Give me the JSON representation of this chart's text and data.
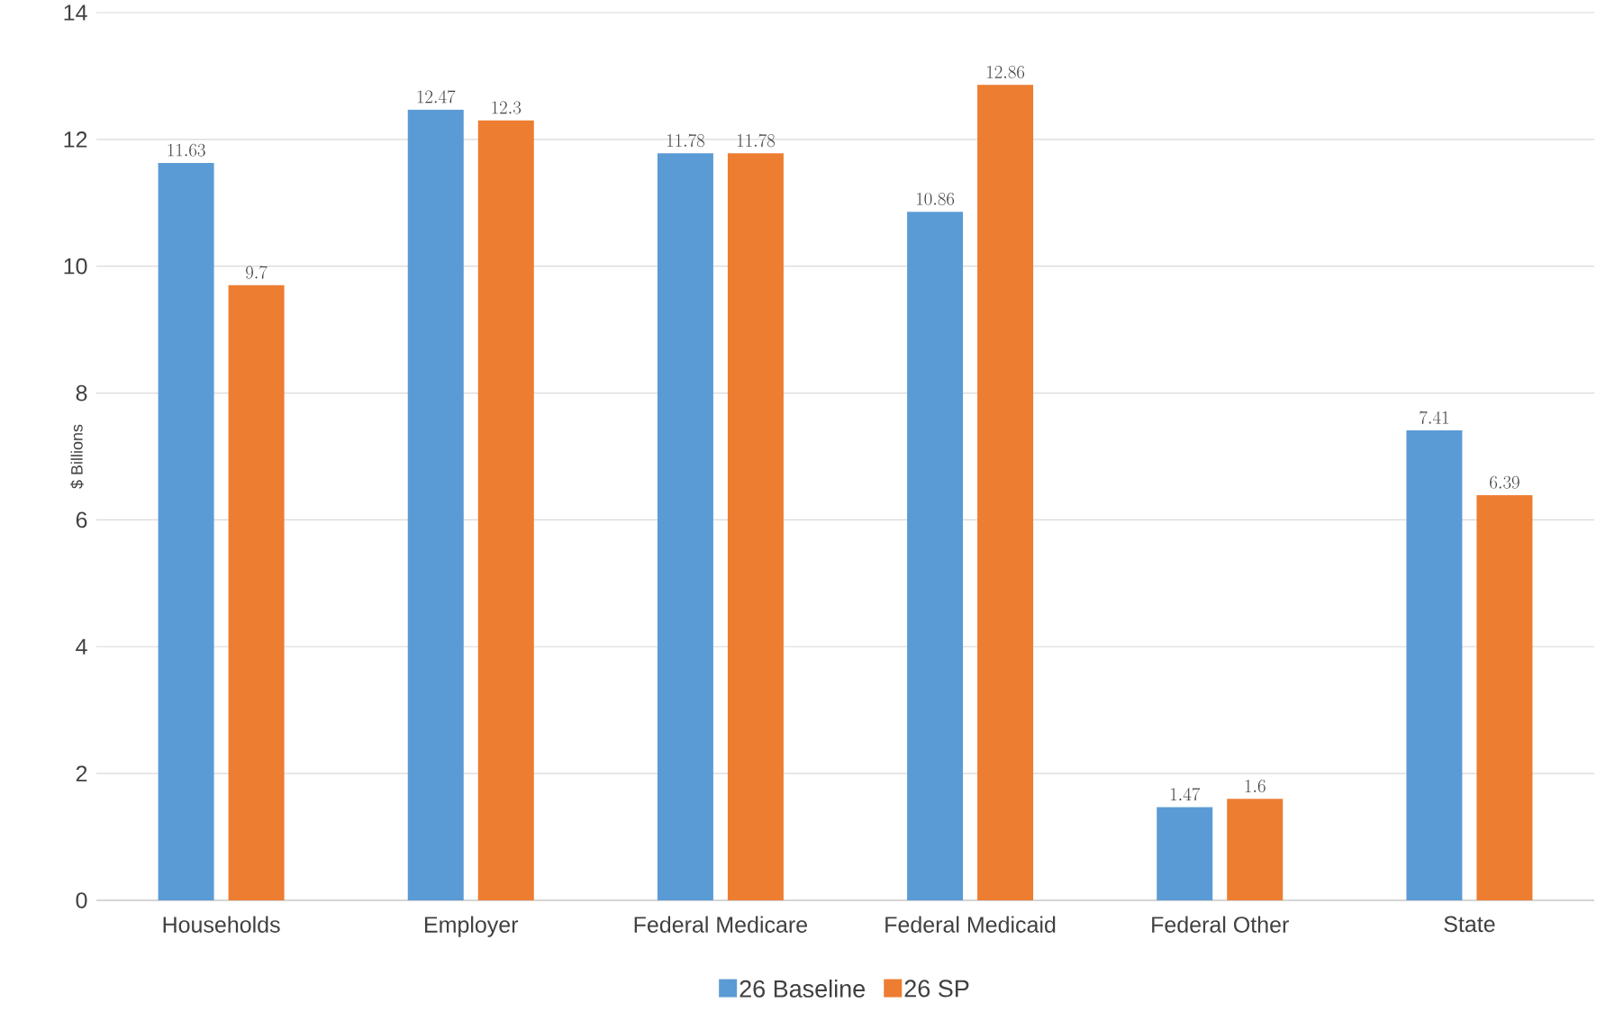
{
  "chart_data": {
    "type": "bar",
    "ylabel": "$ Billions",
    "categories": [
      "Households",
      "Employer",
      "Federal Medicare",
      "Federal Medicaid",
      "Federal Other",
      "State"
    ],
    "series": [
      {
        "name": "26 Baseline",
        "color": "#5b9bd5",
        "values": [
          11.63,
          12.47,
          11.78,
          10.86,
          1.47,
          7.41
        ]
      },
      {
        "name": "26 SP",
        "color": "#ed7d31",
        "values": [
          9.7,
          12.3,
          11.78,
          12.86,
          1.6,
          6.39
        ]
      }
    ],
    "ylim": [
      0,
      14
    ],
    "yticks": [
      0,
      2,
      4,
      6,
      8,
      10,
      12,
      14
    ],
    "grid": "y",
    "legend": "bottom",
    "data_labels": true
  }
}
